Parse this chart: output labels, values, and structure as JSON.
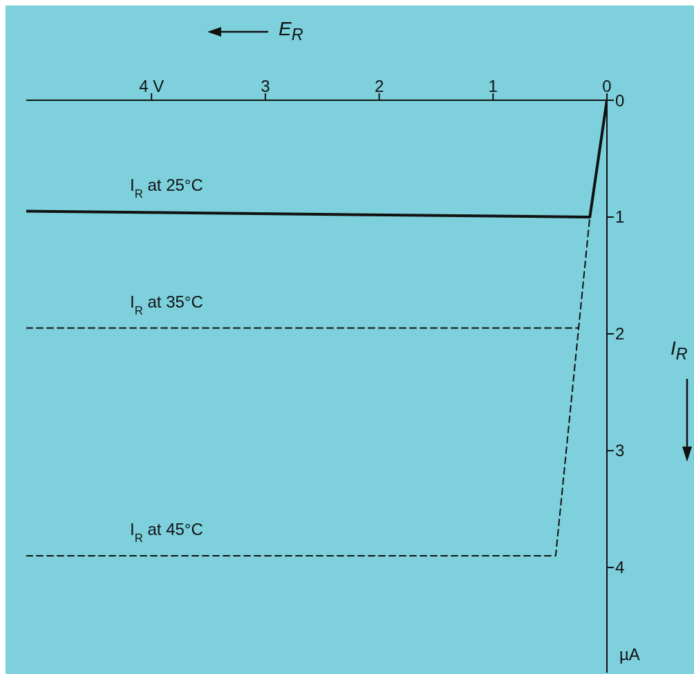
{
  "chart_data": {
    "type": "line",
    "xlabel": "E$_{R}$",
    "ylabel": "I$_{R}$",
    "annotations": [
      "µA"
    ],
    "xlim": [
      5.1,
      0
    ],
    "xticks": [
      {
        "value": 4,
        "label": "4 V"
      },
      3,
      2,
      1,
      0
    ],
    "ylim": [
      4.9,
      0
    ],
    "yticks": [
      0,
      1,
      2,
      3,
      4
    ],
    "marker": "none",
    "series": [
      {
        "name": "I$_{R}$ at 25°C",
        "color": "#111111",
        "line_style": "solid",
        "x": [
          5.1,
          0.15,
          0
        ],
        "values": [
          0.95,
          1.0,
          0
        ]
      },
      {
        "name": "I$_{R}$ at 35°C",
        "color": "#111111",
        "line_style": "dashed",
        "x": [
          5.1,
          0.25
        ],
        "values": [
          1.95,
          1.95
        ]
      },
      {
        "name": "I$_{R}$ at 45°C",
        "color": "#111111",
        "line_style": "dashed",
        "x": [
          5.1,
          0.45,
          0.15
        ],
        "values": [
          3.9,
          3.9,
          1.0
        ]
      }
    ]
  }
}
